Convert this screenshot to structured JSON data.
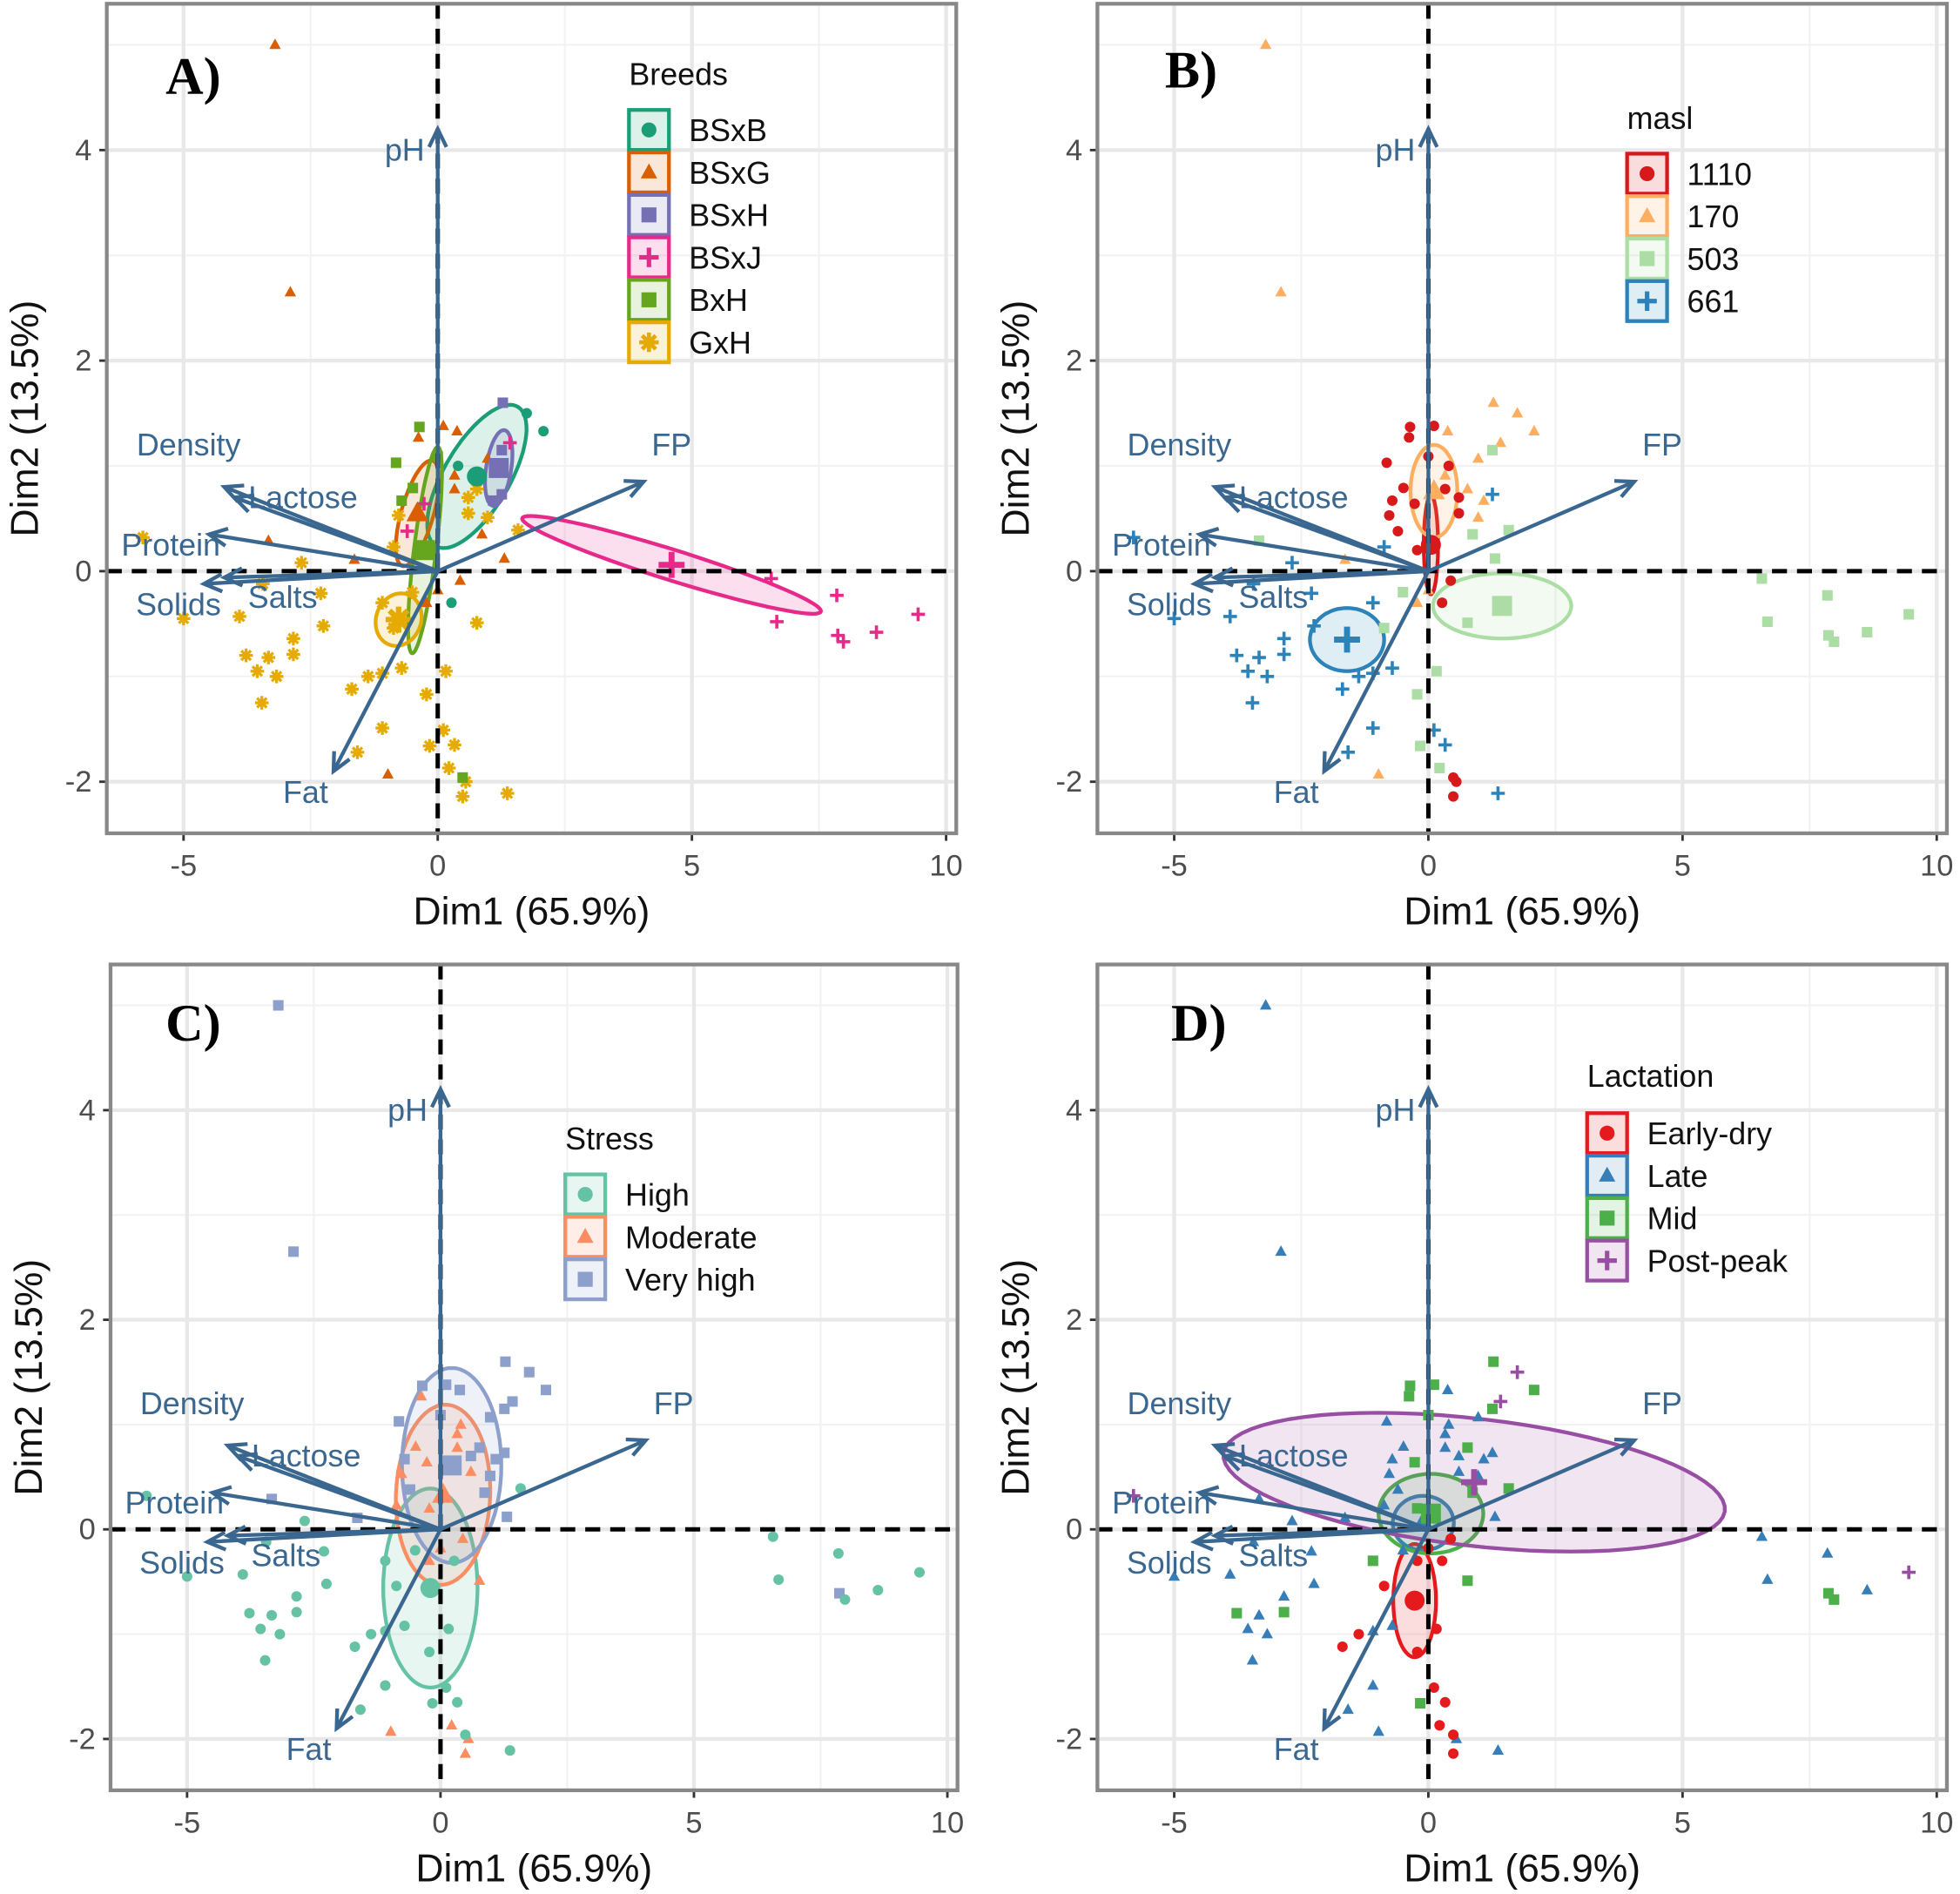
{
  "chart_data": {
    "type": "scatter",
    "xlabel": "Dim1 (65.9%)",
    "ylabel": "Dim2 (13.5%)",
    "xlim": [
      -6.51,
      10.2
    ],
    "ylim": [
      -2.49,
      5.39
    ],
    "xticks": [
      "-5",
      "0",
      "5",
      "10"
    ],
    "xtick_values": [
      -5,
      0,
      5,
      10
    ],
    "yticks": [
      "-2",
      "0",
      "2",
      "4"
    ],
    "ytick_values": [
      -2,
      0,
      2,
      4
    ],
    "grid": true,
    "arrow_color": "#3a6790",
    "variables": [
      {
        "name": "pH",
        "x": 0.0,
        "y": 4.2
      },
      {
        "name": "FP",
        "x": 4.05,
        "y": 0.85
      },
      {
        "name": "Density",
        "x": -4.2,
        "y": 0.8
      },
      {
        "name": "Lactose",
        "x": -4.0,
        "y": 0.7
      },
      {
        "name": "Protein",
        "x": -4.5,
        "y": 0.35
      },
      {
        "name": "Solids",
        "x": -4.6,
        "y": -0.12
      },
      {
        "name": "Salts",
        "x": -4.2,
        "y": -0.06
      },
      {
        "name": "Fat",
        "x": -2.05,
        "y": -1.9
      }
    ],
    "observation_fields": [
      "Dim1",
      "Dim2",
      "Breeds",
      "masl",
      "Stress",
      "Lactation"
    ],
    "observations": [
      [
        -5.8,
        0.32,
        "GxH",
        "661",
        "High",
        "Post-peak"
      ],
      [
        -2.68,
        0.08,
        "GxH",
        "661",
        "High",
        "Late"
      ],
      [
        -3.44,
        -0.12,
        "GxH",
        "661",
        "High",
        "Late"
      ],
      [
        -2.3,
        -0.21,
        "GxH",
        "661",
        "High",
        "Late"
      ],
      [
        -3.9,
        -0.43,
        "GxH",
        "661",
        "High",
        "Late"
      ],
      [
        -2.25,
        -0.52,
        "GxH",
        "661",
        "High",
        "Late"
      ],
      [
        -2.84,
        -0.64,
        "GxH",
        "661",
        "High",
        "Late"
      ],
      [
        -3.77,
        -0.8,
        "GxH",
        "661",
        "High",
        "Mid"
      ],
      [
        -3.33,
        -0.82,
        "GxH",
        "661",
        "High",
        "Late"
      ],
      [
        -2.84,
        -0.79,
        "GxH",
        "661",
        "High",
        "Mid"
      ],
      [
        -3.55,
        -0.95,
        "GxH",
        "661",
        "High",
        "Late"
      ],
      [
        -3.17,
        -1.0,
        "GxH",
        "661",
        "High",
        "Late"
      ],
      [
        -3.46,
        -1.25,
        "GxH",
        "661",
        "High",
        "Late"
      ],
      [
        -1.37,
        -1.0,
        "GxH",
        "661",
        "High",
        "Early-dry"
      ],
      [
        -1.69,
        -1.12,
        "GxH",
        "661",
        "High",
        "Early-dry"
      ],
      [
        -0.71,
        -0.92,
        "GxH",
        "661",
        "High",
        "Late"
      ],
      [
        -1.09,
        -0.97,
        "GxH",
        "661",
        "High",
        "Late"
      ],
      [
        -0.22,
        -1.17,
        "GxH",
        "503",
        "High",
        "Early-dry"
      ],
      [
        0.16,
        -0.95,
        "GxH",
        "503",
        "High",
        "Early-dry"
      ],
      [
        0.77,
        -0.49,
        "GxH",
        "503",
        "Moderate",
        "Mid"
      ],
      [
        -1.09,
        -1.49,
        "GxH",
        "661",
        "High",
        "Late"
      ],
      [
        -1.58,
        -1.72,
        "GxH",
        "661",
        "High",
        "Late"
      ],
      [
        -0.16,
        -1.66,
        "GxH",
        "503",
        "High",
        "Mid"
      ],
      [
        0.33,
        -1.65,
        "GxH",
        "661",
        "High",
        "Early-dry"
      ],
      [
        0.11,
        -1.51,
        "GxH",
        "661",
        "High",
        "Early-dry"
      ],
      [
        0.22,
        -1.87,
        "GxH",
        "503",
        "Moderate",
        "Early-dry"
      ],
      [
        0.55,
        -2.0,
        "GxH",
        "1110",
        "Moderate",
        "Late"
      ],
      [
        0.49,
        -2.14,
        "GxH",
        "1110",
        "Moderate",
        "Early-dry"
      ],
      [
        1.37,
        -2.11,
        "GxH",
        "661",
        "High",
        "Late"
      ],
      [
        0.6,
        0.7,
        "GxH",
        "1110",
        "Very high",
        "Late"
      ],
      [
        0.77,
        0.78,
        "GxH",
        "170",
        "Very high",
        "Mid"
      ],
      [
        0.6,
        0.55,
        "GxH",
        "1110",
        "Moderate",
        "Late"
      ],
      [
        0.98,
        0.51,
        "GxH",
        "170",
        "Very high",
        "Late"
      ],
      [
        1.58,
        0.39,
        "GxH",
        "503",
        "High",
        "Mid"
      ],
      [
        -0.77,
        0.53,
        "GxH",
        "1110",
        "Moderate",
        "Late"
      ],
      [
        -0.87,
        0.23,
        "GxH",
        "661",
        "Moderate",
        "Late"
      ],
      [
        -1.09,
        -0.3,
        "GxH",
        "661",
        "High",
        "Mid"
      ],
      [
        -0.87,
        -0.54,
        "GxH",
        "503",
        "High",
        "Early-dry"
      ],
      [
        -5.0,
        -0.45,
        "GxH",
        "661",
        "High",
        "Late"
      ],
      [
        -0.5,
        -0.2,
        "GxH",
        "503",
        "High",
        "Late"
      ],
      [
        6.56,
        -0.07,
        "BSxJ",
        "503",
        "High",
        "Late"
      ],
      [
        7.85,
        -0.23,
        "BSxJ",
        "503",
        "High",
        "Late"
      ],
      [
        6.67,
        -0.48,
        "BSxJ",
        "503",
        "High",
        "Late"
      ],
      [
        7.87,
        -0.61,
        "BSxJ",
        "503",
        "Very high",
        "Mid"
      ],
      [
        7.98,
        -0.67,
        "BSxJ",
        "503",
        "High",
        "Mid"
      ],
      [
        8.63,
        -0.58,
        "BSxJ",
        "503",
        "High",
        "Late"
      ],
      [
        9.45,
        -0.41,
        "BSxJ",
        "503",
        "High",
        "Post-peak"
      ],
      [
        1.42,
        1.22,
        "BSxJ",
        "170",
        "Very high",
        "Post-peak"
      ],
      [
        -0.27,
        0.64,
        "BSxJ",
        "1110",
        "Moderate",
        "Mid"
      ],
      [
        -0.6,
        0.38,
        "BSxJ",
        "1110",
        "Very high",
        "Late"
      ],
      [
        -3.2,
        5.0,
        "BSxG",
        "170",
        "Very high",
        "Late"
      ],
      [
        -2.9,
        2.65,
        "BSxG",
        "170",
        "Very high",
        "Late"
      ],
      [
        0.11,
        1.38,
        "BSxG",
        "1110",
        "Very high",
        "Mid"
      ],
      [
        -0.38,
        1.27,
        "BSxG",
        "1110",
        "Moderate",
        "Mid"
      ],
      [
        0.38,
        1.33,
        "BSxG",
        "170",
        "Very high",
        "Late"
      ],
      [
        0.98,
        1.07,
        "BSxG",
        "170",
        "Very high",
        "Late"
      ],
      [
        0.33,
        0.91,
        "BSxG",
        "170",
        "Moderate",
        "Late"
      ],
      [
        0.33,
        0.78,
        "BSxG",
        "1110",
        "Moderate",
        "Late"
      ],
      [
        -3.33,
        0.29,
        "BSxG",
        "503",
        "Very high",
        "Late"
      ],
      [
        -1.64,
        0.11,
        "BSxG",
        "170",
        "Very high",
        "Late"
      ],
      [
        1.31,
        0.12,
        "BSxG",
        "503",
        "Very high",
        "Late"
      ],
      [
        0.44,
        -0.09,
        "BSxG",
        "1110",
        "Moderate",
        "Early-dry"
      ],
      [
        0.0,
        -0.18,
        "BSxG",
        "170",
        "Moderate",
        "Early-dry"
      ],
      [
        -0.22,
        -0.3,
        "BSxG",
        "170",
        "Moderate",
        "Early-dry"
      ],
      [
        -0.98,
        -1.93,
        "BSxG",
        "170",
        "Moderate",
        "Late"
      ],
      [
        0.87,
        0.35,
        "BSxG",
        "503",
        "Very high",
        "Mid"
      ],
      [
        1.75,
        1.5,
        "BSxB",
        "170",
        "Very high",
        "Post-peak"
      ],
      [
        2.08,
        1.33,
        "BSxB",
        "170",
        "Very high",
        "Mid"
      ],
      [
        0.4,
        1.0,
        "BSxB",
        "1110",
        "Moderate",
        "Late"
      ],
      [
        0.27,
        -0.3,
        "BSxB",
        "1110",
        "High",
        "Early-dry"
      ],
      [
        1.28,
        1.6,
        "BSxH",
        "170",
        "Very high",
        "Mid"
      ],
      [
        1.26,
        1.15,
        "BSxH",
        "503",
        "Very high",
        "Mid"
      ],
      [
        1.26,
        0.73,
        "BSxH",
        "661",
        "Very high",
        "Late"
      ],
      [
        1.09,
        0.67,
        "BSxH",
        "170",
        "Very high",
        "Late"
      ],
      [
        -0.36,
        1.37,
        "BxH",
        "1110",
        "Very high",
        "Mid"
      ],
      [
        -0.82,
        1.03,
        "BxH",
        "1110",
        "Very high",
        "Late"
      ],
      [
        -0.49,
        0.79,
        "BxH",
        "1110",
        "Moderate",
        "Late"
      ],
      [
        0.0,
        1.09,
        "BxH",
        "1110",
        "Very high",
        "Mid"
      ],
      [
        -0.22,
        0.2,
        "BxH",
        "1110",
        "Moderate",
        "Mid"
      ],
      [
        0.49,
        -1.96,
        "BxH",
        "1110",
        "High",
        "Early-dry"
      ],
      [
        -0.71,
        0.67,
        "BxH",
        "1110",
        "Very high",
        "Late"
      ]
    ],
    "panels": [
      {
        "label": "A)",
        "legend_title": "Breeds",
        "field": 2,
        "groups": [
          {
            "name": "BSxB",
            "color": "#1B9E77",
            "shape": "circle",
            "ellipse": {
              "center": [
                0.77,
                0.9
              ],
              "axis1": [
                0.77,
                0.67
              ],
              "axis2": [
                0.6,
                -0.12
              ]
            }
          },
          {
            "name": "BSxG",
            "color": "#D95F02",
            "shape": "triangle",
            "ellipse": {
              "center": [
                -0.4,
                0.55
              ],
              "axis1": [
                0.3,
                0.5
              ],
              "axis2": [
                0.3,
                -0.05
              ]
            }
          },
          {
            "name": "BSxH",
            "color": "#7570B3",
            "shape": "square",
            "ellipse": {
              "center": [
                1.2,
                0.98
              ],
              "axis1": [
                0.1,
                0.36
              ],
              "axis2": [
                0.25,
                0
              ]
            }
          },
          {
            "name": "BSxJ",
            "color": "#E7298A",
            "shape": "plus",
            "ellipse": {
              "center": [
                4.6,
                0.06
              ],
              "axis1": [
                2.93,
                -0.45
              ],
              "axis2": [
                -0.24,
                -0.115
              ]
            }
          },
          {
            "name": "BxH",
            "color": "#66A61E",
            "shape": "square",
            "ellipse": {
              "center": [
                -0.25,
                0.2
              ],
              "axis1": [
                0.25,
                0.98
              ],
              "axis2": [
                0.22,
                0
              ]
            }
          },
          {
            "name": "GxH",
            "color": "#E6AB02",
            "shape": "asterisk",
            "ellipse": {
              "center": [
                -0.77,
                -0.46
              ],
              "axis1": [
                0.05,
                0.25
              ],
              "axis2": [
                0.45,
                0
              ]
            }
          }
        ]
      },
      {
        "label": "B)",
        "legend_title": "masl",
        "field": 3,
        "groups": [
          {
            "name": "1110",
            "color": "#D7191C",
            "shape": "circle",
            "ellipse": {
              "center": [
                0.05,
                0.25
              ],
              "axis1": [
                0,
                0.47
              ],
              "axis2": [
                0.14,
                0
              ]
            }
          },
          {
            "name": "170",
            "color": "#FDAE61",
            "shape": "triangle",
            "ellipse": {
              "center": [
                0.11,
                0.76
              ],
              "axis1": [
                0,
                0.44
              ],
              "axis2": [
                0.46,
                0
              ]
            }
          },
          {
            "name": "503",
            "color": "#ABDDA4",
            "shape": "square",
            "ellipse": {
              "center": [
                1.45,
                -0.33
              ],
              "axis1": [
                1.36,
                0
              ],
              "axis2": [
                0,
                0.31
              ]
            }
          },
          {
            "name": "661",
            "color": "#2B83BA",
            "shape": "plus",
            "ellipse": {
              "center": [
                -1.6,
                -0.65
              ],
              "axis1": [
                0.73,
                0
              ],
              "axis2": [
                0,
                0.3
              ]
            }
          }
        ]
      },
      {
        "label": "C)",
        "legend_title": "Stress",
        "field": 4,
        "groups": [
          {
            "name": "High",
            "color": "#66C2A5",
            "shape": "circle",
            "ellipse": {
              "center": [
                -0.2,
                -0.56
              ],
              "axis1": [
                0.93,
                0
              ],
              "axis2": [
                0,
                0.95
              ]
            }
          },
          {
            "name": "Moderate",
            "color": "#FC8D62",
            "shape": "triangle",
            "ellipse": {
              "center": [
                0.05,
                0.33
              ],
              "axis1": [
                0.93,
                0
              ],
              "axis2": [
                0.05,
                0.86
              ]
            }
          },
          {
            "name": "Very high",
            "color": "#8DA0CB",
            "shape": "square",
            "ellipse": {
              "center": [
                0.22,
                0.61
              ],
              "axis1": [
                0.98,
                0
              ],
              "axis2": [
                0,
                0.93
              ]
            }
          }
        ]
      },
      {
        "label": "D)",
        "legend_title": "Lactation",
        "field": 5,
        "groups": [
          {
            "name": "Early-dry",
            "color": "#E41A1C",
            "shape": "circle",
            "ellipse": {
              "center": [
                -0.27,
                -0.68
              ],
              "axis1": [
                0.42,
                0
              ],
              "axis2": [
                0,
                0.54
              ]
            }
          },
          {
            "name": "Late",
            "color": "#377EB8",
            "shape": "triangle",
            "ellipse": {
              "center": [
                -0.1,
                0.06
              ],
              "axis1": [
                0.6,
                0
              ],
              "axis2": [
                0,
                0.26
              ]
            }
          },
          {
            "name": "Mid",
            "color": "#4DAF4A",
            "shape": "square",
            "ellipse": {
              "center": [
                0.05,
                0.15
              ],
              "axis1": [
                1.03,
                0
              ],
              "axis2": [
                0,
                0.38
              ]
            }
          },
          {
            "name": "Post-peak",
            "color": "#984EA3",
            "shape": "plus",
            "ellipse": {
              "center": [
                0.9,
                0.45
              ],
              "axis1": [
                4.93,
                -0.28
              ],
              "axis2": [
                0.2,
                0.6
              ]
            }
          }
        ]
      }
    ]
  }
}
